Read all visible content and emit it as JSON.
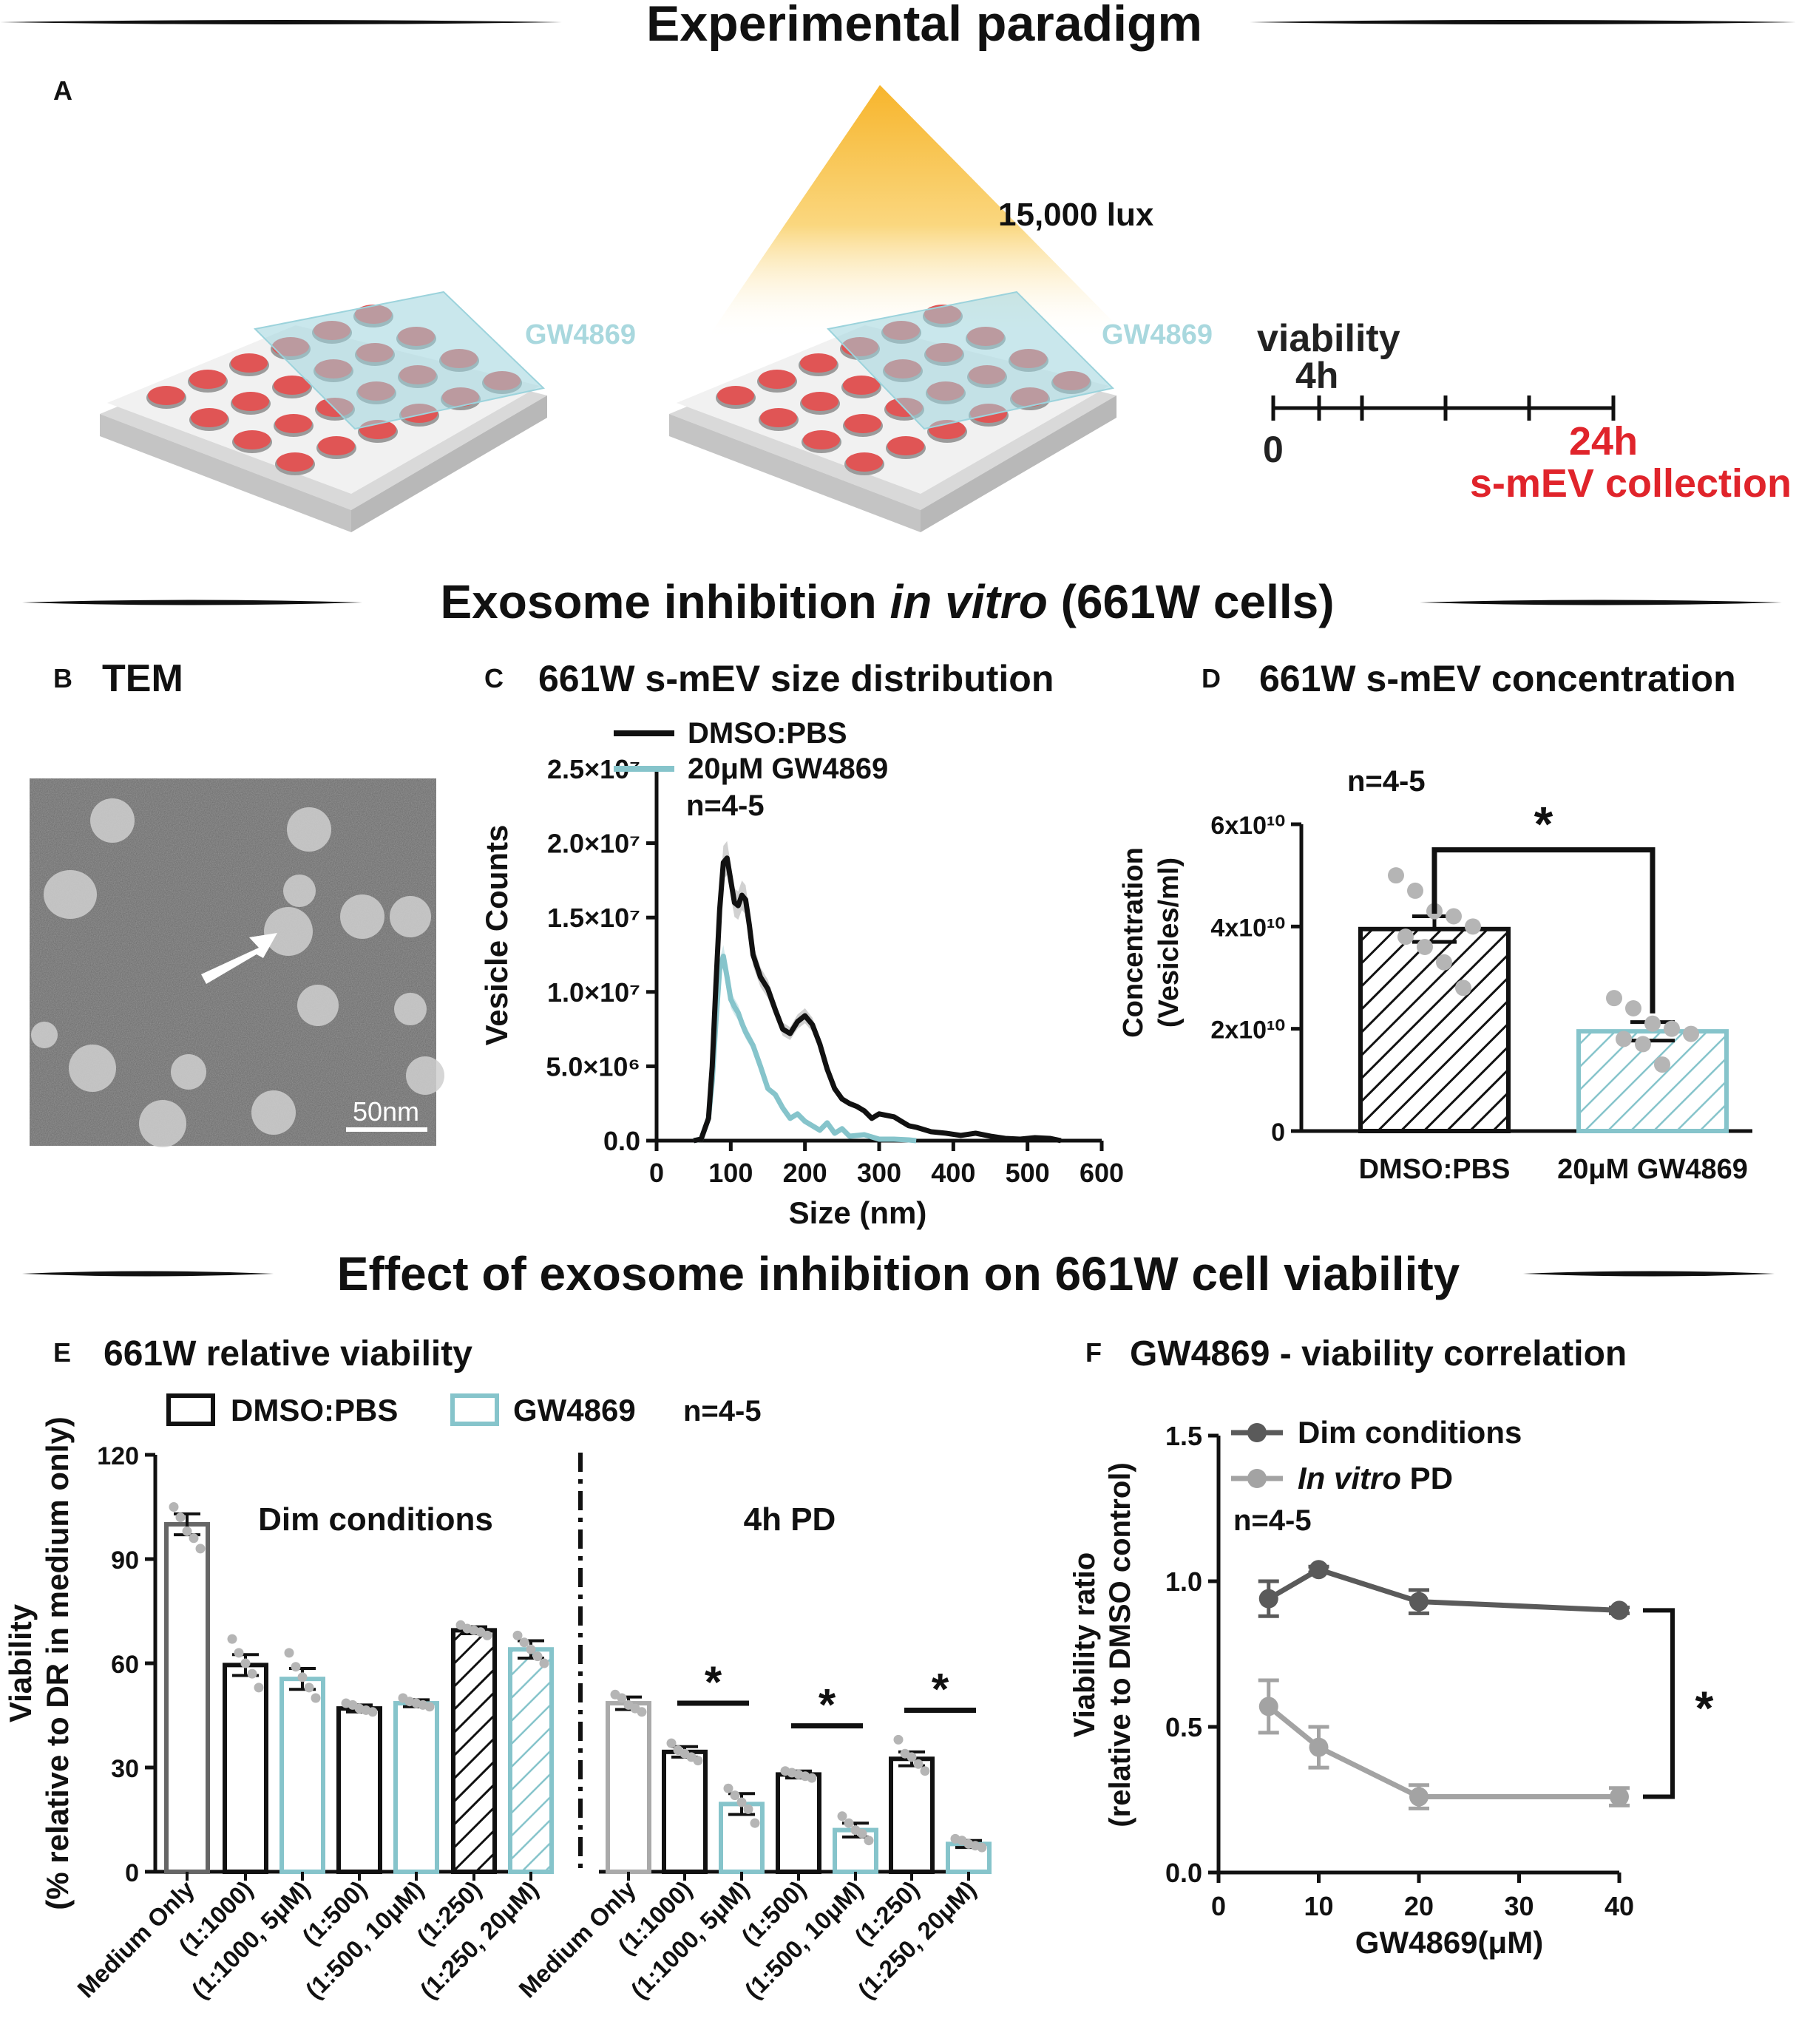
{
  "colors": {
    "black": "#111111",
    "teal": "#86c4cb",
    "red": "#e0242b",
    "gray_dark": "#5a5a5a",
    "gray_light": "#a3a3a3",
    "dot": "#b5b5b5",
    "well_red": "#e05555",
    "plate": "#ececec"
  },
  "section_titles": {
    "paradigm": "Experimental paradigm",
    "inhibition_prefix": "Exosome inhibition ",
    "inhibition_italic": "in vitro",
    "inhibition_suffix": " (661W cells)",
    "viability": "Effect of exosome inhibition on 661W cell viability"
  },
  "panel_a": {
    "letter": "A",
    "lux": "15,000 lux",
    "plate_label_1": "GW4869",
    "plate_label_2": "GW4869",
    "timeline": {
      "viability": "viability",
      "t4": "4h",
      "t0": "0",
      "t24": "24h",
      "collection": "s-mEV collection"
    }
  },
  "panel_b": {
    "letter": "B",
    "title": "TEM",
    "scale_bar": "50nm"
  },
  "chart_data": [
    {
      "id": "C",
      "type": "line",
      "title": "661W s-mEV size distribution",
      "xlabel": "Size (nm)",
      "ylabel": "Vesicle Counts",
      "xlim": [
        0,
        600
      ],
      "ylim": [
        0,
        25000000
      ],
      "xticks": [
        "0",
        "100",
        "200",
        "300",
        "400",
        "500",
        "600"
      ],
      "xtick_values": [
        0,
        100,
        200,
        300,
        400,
        500,
        600
      ],
      "yticks": [
        "0.0",
        "5.0×10⁶",
        "1.0×10⁷",
        "1.5×10⁷",
        "2.0×10⁷",
        "2.5×10⁷"
      ],
      "ytick_values": [
        0,
        5000000,
        10000000,
        15000000,
        20000000,
        25000000
      ],
      "legend": [
        "DMSO:PBS",
        "20μM GW4869"
      ],
      "n_label": "n=4-5",
      "series": [
        {
          "name": "DMSO:PBS",
          "x": [
            50,
            60,
            70,
            75,
            80,
            85,
            90,
            95,
            100,
            105,
            110,
            115,
            120,
            125,
            130,
            140,
            150,
            160,
            170,
            180,
            190,
            200,
            210,
            220,
            230,
            240,
            250,
            260,
            270,
            280,
            290,
            300,
            310,
            320,
            330,
            340,
            350,
            370,
            390,
            410,
            430,
            450,
            470,
            490,
            510,
            530,
            545
          ],
          "values": [
            0,
            100000,
            1500000,
            5000000,
            10500000,
            15500000,
            18700000,
            19000000,
            17500000,
            16000000,
            15800000,
            16500000,
            16200000,
            14500000,
            12500000,
            11000000,
            10200000,
            8800000,
            7500000,
            7200000,
            8000000,
            8400000,
            7800000,
            6500000,
            4800000,
            3500000,
            2800000,
            2500000,
            2300000,
            2000000,
            1500000,
            1800000,
            1700000,
            1600000,
            1300000,
            1000000,
            900000,
            600000,
            500000,
            350000,
            500000,
            300000,
            150000,
            100000,
            200000,
            150000,
            0
          ]
        },
        {
          "name": "20μM GW4869",
          "x": [
            50,
            60,
            70,
            75,
            80,
            85,
            90,
            95,
            100,
            105,
            110,
            115,
            120,
            130,
            140,
            150,
            160,
            170,
            180,
            190,
            200,
            210,
            220,
            230,
            240,
            250,
            260,
            280,
            300,
            320,
            340,
            350
          ],
          "values": [
            0,
            100000,
            1500000,
            4000000,
            8000000,
            11500000,
            12400000,
            11000000,
            9500000,
            9000000,
            8600000,
            7900000,
            7300000,
            6400000,
            5000000,
            3500000,
            3100000,
            2200000,
            1500000,
            1800000,
            1300000,
            1000000,
            700000,
            1200000,
            500000,
            800000,
            300000,
            400000,
            100000,
            100000,
            50000,
            0
          ]
        }
      ]
    },
    {
      "id": "D",
      "type": "bar",
      "title": "661W s-mEV concentration",
      "ylabel_line1": "Concentration",
      "ylabel_line2": "(Vesicles/ml)",
      "ylim": [
        0,
        60000000000
      ],
      "yticks": [
        "0",
        "2x10¹⁰",
        "4x10¹⁰",
        "6x10¹⁰"
      ],
      "ytick_values": [
        0,
        20000000000,
        40000000000,
        60000000000
      ],
      "categories": [
        "DMSO:PBS",
        "20μM GW4869"
      ],
      "values": [
        39500000000,
        19500000000
      ],
      "errors": [
        2500000000,
        1800000000
      ],
      "points": [
        [
          50000000000,
          47000000000,
          43000000000,
          42000000000,
          40000000000,
          38000000000,
          36000000000,
          33000000000,
          28000000000
        ],
        [
          26000000000,
          24000000000,
          21000000000,
          20000000000,
          19000000000,
          18000000000,
          17000000000,
          13000000000
        ]
      ],
      "n_label": "n=4-5",
      "significance": "*"
    },
    {
      "id": "E",
      "type": "bar",
      "title": "661W relative viability",
      "ylabel_line1": "Viability",
      "ylabel_line2": "(% relative to DR in medium only)",
      "ylim": [
        0,
        120
      ],
      "yticks": [
        "0",
        "30",
        "60",
        "90",
        "120"
      ],
      "ytick_values": [
        0,
        30,
        60,
        90,
        120
      ],
      "legend": [
        "DMSO:PBS",
        "GW4869"
      ],
      "n_label": "n=4-5",
      "group_labels": [
        "Dim conditions",
        "4h PD"
      ],
      "categories": [
        "Medium Only",
        "(1:1000)",
        "(1:1000, 5μM)",
        "(1:500)",
        "(1:500, 10μM)",
        "(1:250)",
        "(1:250, 20μM)",
        "Medium Only",
        "(1:1000)",
        "(1:1000, 5μM)",
        "(1:500)",
        "(1:500, 10μM)",
        "(1:250)",
        "(1:250, 20μM)"
      ],
      "values": [
        100,
        59.5,
        55.5,
        47,
        48.5,
        69.5,
        64,
        48.5,
        34.5,
        19.5,
        28,
        12,
        32.5,
        8
      ],
      "errors": [
        3,
        3,
        3,
        1,
        1,
        1,
        2.5,
        1.8,
        1.5,
        3,
        1,
        2,
        2,
        1
      ],
      "styles": [
        "gray",
        "black",
        "teal",
        "black",
        "teal",
        "black-hatch",
        "teal-hatch",
        "lightgray",
        "black",
        "teal",
        "black",
        "teal",
        "black",
        "teal"
      ],
      "points": [
        [
          105,
          102,
          98,
          96,
          93
        ],
        [
          67,
          63,
          60,
          57,
          53
        ],
        [
          63,
          59,
          56,
          53,
          50
        ],
        [
          48.5,
          48,
          47,
          46.5,
          46
        ],
        [
          50,
          49,
          48.5,
          48,
          47.5
        ],
        [
          71,
          70,
          69.5,
          69,
          68
        ],
        [
          68,
          66,
          64,
          62,
          60
        ],
        [
          51,
          50,
          48,
          47,
          46
        ],
        [
          37,
          35,
          34,
          33,
          32
        ],
        [
          24,
          22,
          20,
          18,
          14
        ],
        [
          29,
          28.5,
          28,
          27.5,
          27
        ],
        [
          16,
          14,
          12,
          11,
          9
        ],
        [
          38,
          34,
          33,
          31,
          29
        ],
        [
          9.5,
          9,
          8,
          7.5,
          7
        ]
      ],
      "significance": [
        {
          "pair": [
            8,
            9
          ],
          "label": "*"
        },
        {
          "pair": [
            10,
            11
          ],
          "label": "*"
        },
        {
          "pair": [
            12,
            13
          ],
          "label": "*"
        }
      ]
    },
    {
      "id": "F",
      "type": "line",
      "title": "GW4869 - viability correlation",
      "xlabel": "GW4869(μM)",
      "ylabel_line1": "Viability ratio",
      "ylabel_line2": "(relative to DMSO control)",
      "xlim": [
        0,
        40
      ],
      "ylim": [
        0,
        1.5
      ],
      "xticks": [
        "0",
        "10",
        "20",
        "30",
        "40"
      ],
      "xtick_values": [
        0,
        10,
        20,
        30,
        40
      ],
      "yticks": [
        "0.0",
        "0.5",
        "1.0",
        "1.5"
      ],
      "ytick_values": [
        0,
        0.5,
        1.0,
        1.5
      ],
      "n_label": "n=4-5",
      "legend_1": "Dim conditions",
      "legend_2_italic": "In vitro",
      "legend_2_rest": " PD",
      "significance": "*",
      "series": [
        {
          "name": "Dim conditions",
          "x": [
            5,
            10,
            20,
            40
          ],
          "values": [
            0.94,
            1.04,
            0.93,
            0.9
          ],
          "errors": [
            0.06,
            0.01,
            0.04,
            0.01
          ]
        },
        {
          "name": "In vitro PD",
          "x": [
            5,
            10,
            20,
            40
          ],
          "values": [
            0.57,
            0.43,
            0.26,
            0.26
          ],
          "errors": [
            0.09,
            0.07,
            0.04,
            0.03
          ]
        }
      ]
    }
  ]
}
